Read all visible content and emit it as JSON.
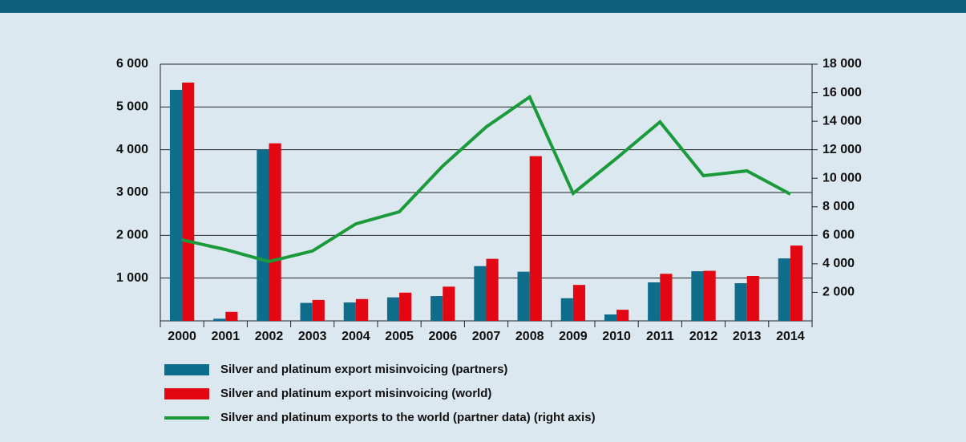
{
  "chart_data": {
    "type": "bar",
    "categories": [
      "2000",
      "2001",
      "2002",
      "2003",
      "2004",
      "2005",
      "2006",
      "2007",
      "2008",
      "2009",
      "2010",
      "2011",
      "2012",
      "2013",
      "2014"
    ],
    "series": [
      {
        "name": "Silver and platinum export misinvoicing (partners)",
        "color": "#0f6d8c",
        "type": "bar",
        "values": [
          5400,
          50,
          4000,
          420,
          430,
          550,
          580,
          1280,
          1150,
          530,
          150,
          900,
          1160,
          880,
          1460
        ]
      },
      {
        "name": "Silver and platinum export misinvoicing (world)",
        "color": "#e30613",
        "type": "bar",
        "values": [
          5570,
          210,
          4150,
          490,
          510,
          660,
          800,
          1450,
          3850,
          840,
          260,
          1100,
          1170,
          1050,
          1760
        ]
      },
      {
        "name": "Silver and platinum exports to the world (partner data) (right axis)",
        "color": "#1a9a3a",
        "type": "line",
        "axis": "y2",
        "values": [
          5680,
          5000,
          4160,
          4900,
          6800,
          7650,
          10860,
          13600,
          15700,
          8940,
          11400,
          13950,
          10180,
          10520,
          8890
        ]
      }
    ],
    "ylim": [
      0,
      6000
    ],
    "yticks": [
      {
        "value": 1000,
        "label": "1 000"
      },
      {
        "value": 2000,
        "label": "2 000"
      },
      {
        "value": 3000,
        "label": "3 000"
      },
      {
        "value": 4000,
        "label": "4 000"
      },
      {
        "value": 5000,
        "label": "5 000"
      },
      {
        "value": 6000,
        "label": "6 000"
      }
    ],
    "y2lim": [
      0,
      18000
    ],
    "y2ticks": [
      {
        "value": 2000,
        "label": "2 000"
      },
      {
        "value": 4000,
        "label": "4 000"
      },
      {
        "value": 6000,
        "label": "6 000"
      },
      {
        "value": 8000,
        "label": "8 000"
      },
      {
        "value": 10000,
        "label": "10 000"
      },
      {
        "value": 12000,
        "label": "12 000"
      },
      {
        "value": 14000,
        "label": "14 000"
      },
      {
        "value": 16000,
        "label": "16 000"
      },
      {
        "value": 18000,
        "label": "18 000"
      }
    ],
    "grid": true,
    "legend": "bottom"
  }
}
